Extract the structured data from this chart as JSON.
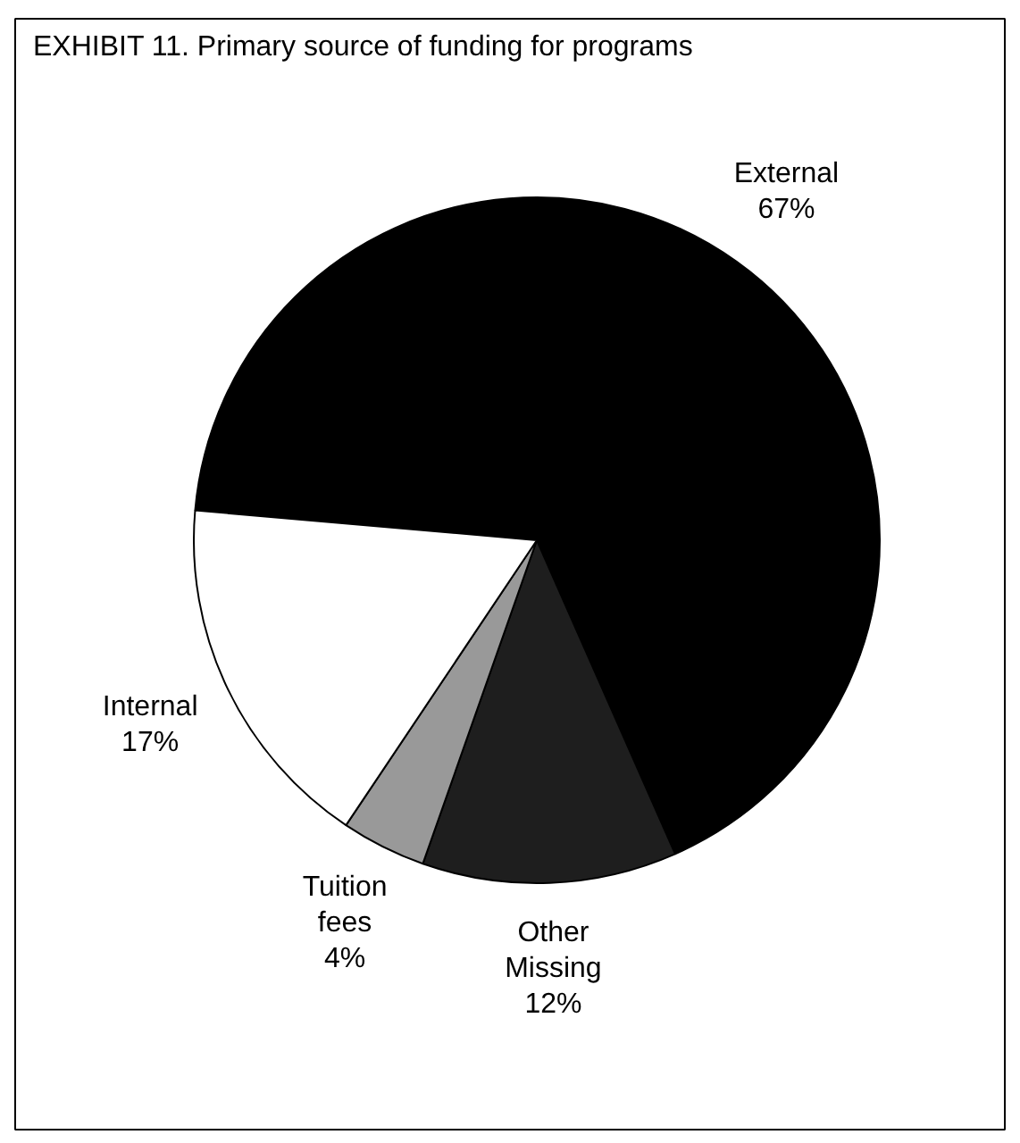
{
  "chart_data": {
    "type": "pie",
    "title": "EXHIBIT 11. Primary source of funding for programs",
    "categories": [
      "External",
      "Other Missing",
      "Tuition fees",
      "Internal"
    ],
    "values": [
      67,
      12,
      4,
      17
    ],
    "colors": [
      "#000000",
      "#1e1e1e",
      "#999999",
      "#ffffff"
    ],
    "value_labels": [
      "67%",
      "12%",
      "4%",
      "17%"
    ]
  }
}
